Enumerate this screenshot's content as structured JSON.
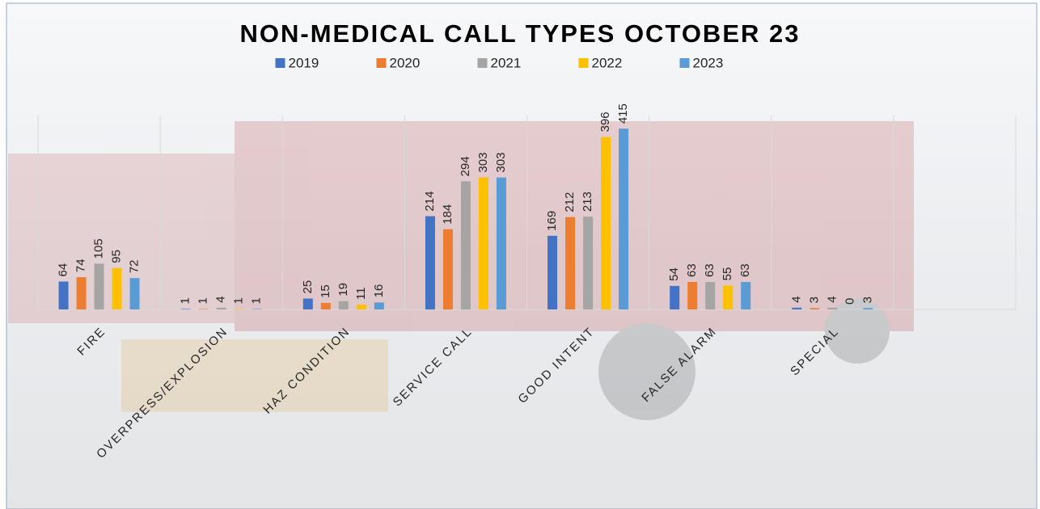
{
  "chart_data": {
    "type": "bar",
    "title": "NON-MEDICAL CALL TYPES OCTOBER 23",
    "categories": [
      "FIRE",
      "OVERPRESS/EXPLOSION",
      "HAZ CONDITION",
      "SERVICE CALL",
      "GOOD INTENT",
      "FALSE ALARM",
      "SPECIAL",
      null
    ],
    "series": [
      {
        "name": "2019",
        "color": "#4472c4",
        "values": [
          64,
          1,
          25,
          214,
          169,
          54,
          4,
          null
        ]
      },
      {
        "name": "2020",
        "color": "#ed7d31",
        "values": [
          74,
          1,
          15,
          184,
          212,
          63,
          3,
          null
        ]
      },
      {
        "name": "2021",
        "color": "#a5a5a5",
        "values": [
          105,
          4,
          19,
          294,
          213,
          63,
          4,
          null
        ]
      },
      {
        "name": "2022",
        "color": "#ffc000",
        "values": [
          95,
          1,
          11,
          303,
          396,
          55,
          0,
          null
        ]
      },
      {
        "name": "2023",
        "color": "#5b9bd5",
        "values": [
          72,
          1,
          16,
          303,
          415,
          63,
          3,
          null
        ]
      }
    ],
    "ylim": [
      0,
      445
    ],
    "legend": "top"
  }
}
